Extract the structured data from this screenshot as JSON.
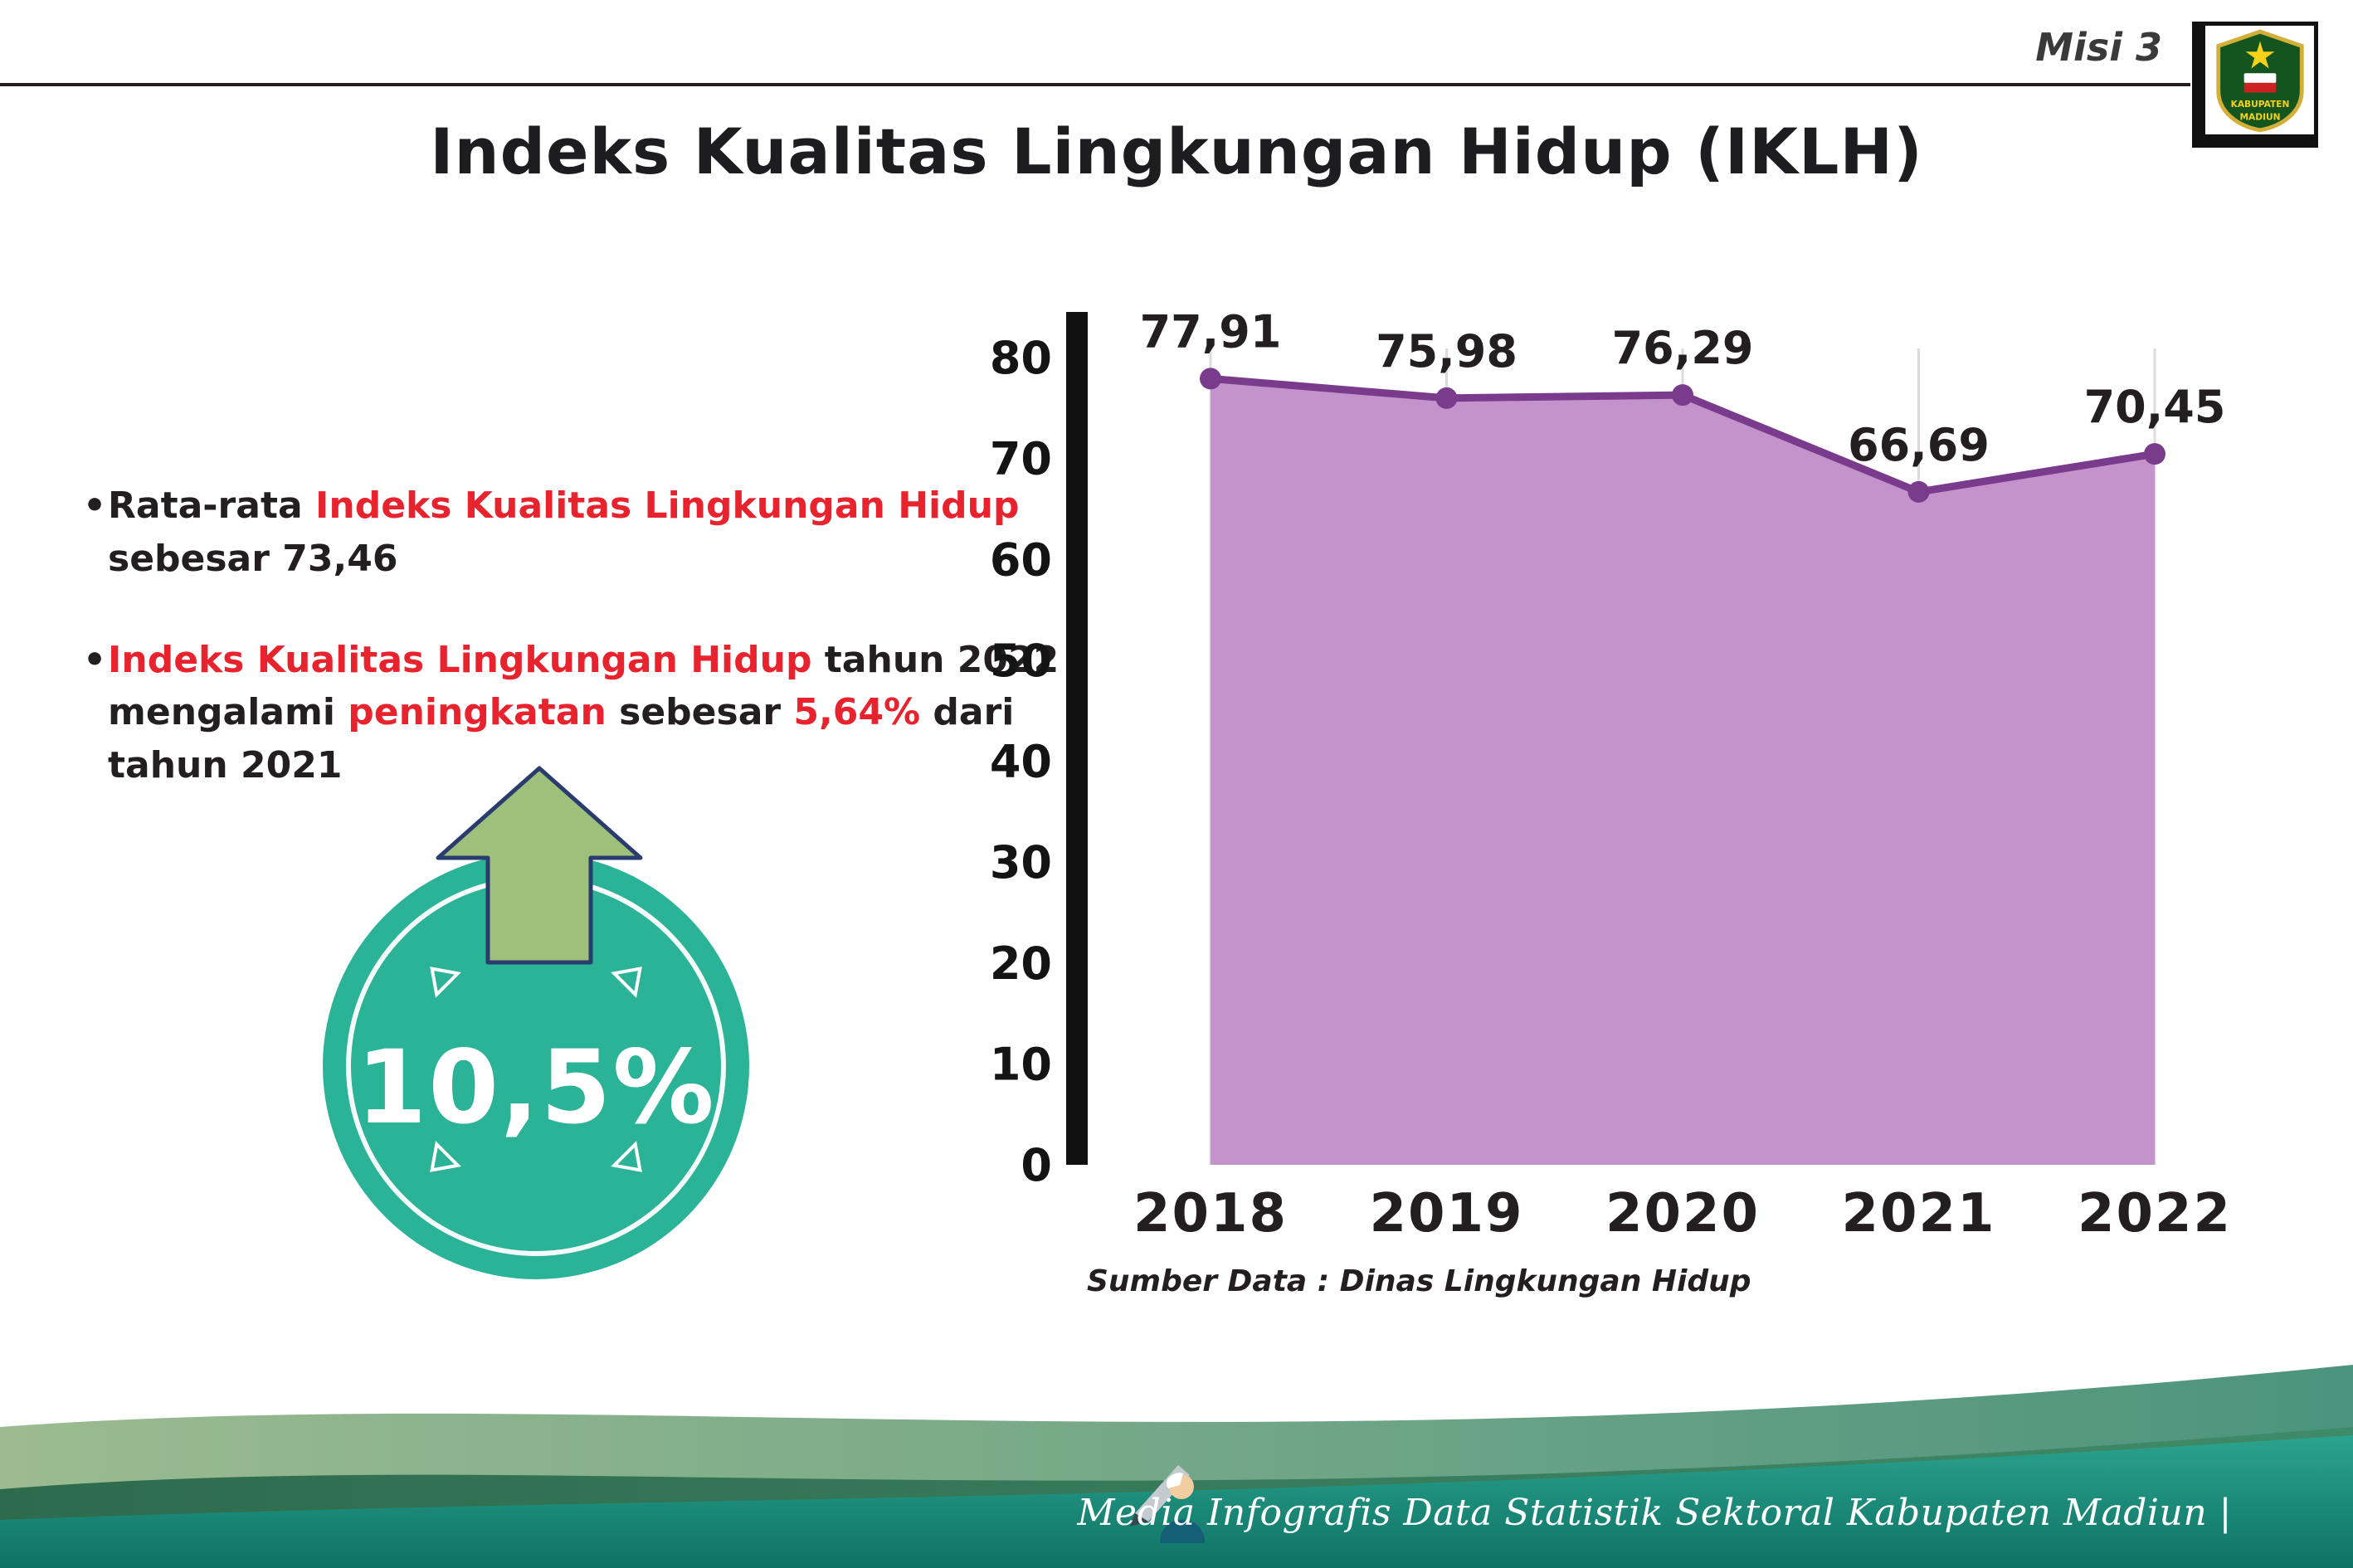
{
  "header": {
    "misi": "Misi 3",
    "title": "Indeks Kualitas Lingkungan Hidup (IKLH)"
  },
  "logo": {
    "line1": "KABUPATEN",
    "line2": "MADIUN"
  },
  "bullets": {
    "marker": "•",
    "b1": [
      {
        "t": "Rata-rata "
      },
      {
        "t": "Indeks Kualitas Lingkungan Hidup",
        "c": "red"
      },
      {
        "br": true
      },
      {
        "t": "sebesar 73,46"
      }
    ],
    "b2": [
      {
        "t": "Indeks Kualitas Lingkungan Hidup",
        "c": "red"
      },
      {
        "t": " tahun 2022"
      },
      {
        "br": true
      },
      {
        "t": "mengalami "
      },
      {
        "t": "peningkatan",
        "c": "red"
      },
      {
        "t": " sebesar "
      },
      {
        "t": "5,64%",
        "c": "red"
      },
      {
        "t": " dari"
      },
      {
        "br": true
      },
      {
        "t": "tahun 2021"
      }
    ]
  },
  "badge": {
    "value": "10,5%"
  },
  "chart_data": {
    "type": "area",
    "title": "",
    "categories": [
      "2018",
      "2019",
      "2020",
      "2021",
      "2022"
    ],
    "values": [
      77.91,
      75.98,
      76.29,
      66.69,
      70.45
    ],
    "value_labels": [
      "77,91",
      "75,98",
      "76,29",
      "66,69",
      "70,45"
    ],
    "xlabel": "",
    "ylabel": "",
    "ylim": [
      0,
      80
    ],
    "ytick_step": 10,
    "grid": "vertical-light",
    "legend": "none",
    "line_color": "#7a3b8d",
    "fill_color": "#c493cc",
    "source": "Sumber Data : Dinas Lingkungan Hidup"
  },
  "footer": {
    "text": "Media Infografis Data Statistik Sektoral Kabupaten Madiun |"
  },
  "colors": {
    "accent_red": "#e8232e",
    "badge_teal": "#2bb397",
    "arrow_green": "#9dc17a",
    "footer_teal": "#1b8f7d"
  }
}
